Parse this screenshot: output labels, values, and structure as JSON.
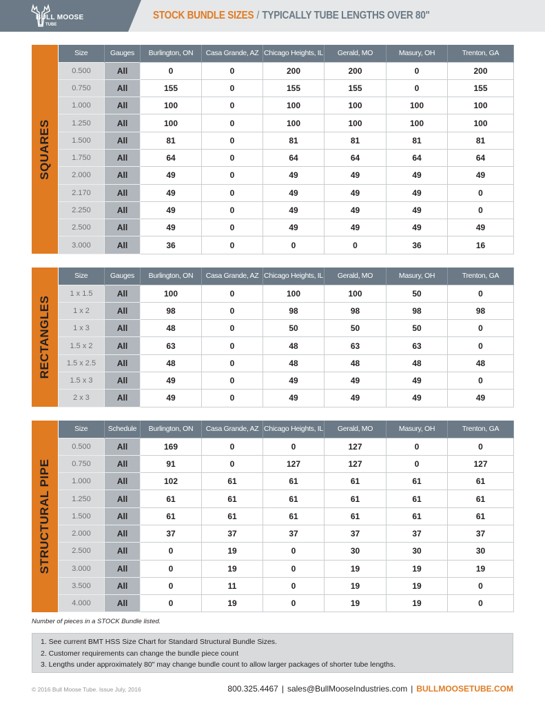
{
  "header": {
    "logo_name": "BULL MOOSE",
    "logo_sub": "TUBE",
    "title_main": "STOCK BUNDLE SIZES",
    "title_sep": "/",
    "title_sub": "TYPICALLY TUBE LENGTHS OVER 80\""
  },
  "accent": "#e07b22",
  "sections": [
    {
      "label": "SQUARES",
      "columns": [
        "Size",
        "Gauges",
        "Burlington, ON",
        "Casa Grande, AZ",
        "Chicago Heights, IL",
        "Gerald, MO",
        "Masury, OH",
        "Trenton, GA"
      ],
      "rows": [
        [
          "0.500",
          "All",
          "0",
          "0",
          "200",
          "200",
          "0",
          "200"
        ],
        [
          "0.750",
          "All",
          "155",
          "0",
          "155",
          "155",
          "0",
          "155"
        ],
        [
          "1.000",
          "All",
          "100",
          "0",
          "100",
          "100",
          "100",
          "100"
        ],
        [
          "1.250",
          "All",
          "100",
          "0",
          "100",
          "100",
          "100",
          "100"
        ],
        [
          "1.500",
          "All",
          "81",
          "0",
          "81",
          "81",
          "81",
          "81"
        ],
        [
          "1.750",
          "All",
          "64",
          "0",
          "64",
          "64",
          "64",
          "64"
        ],
        [
          "2.000",
          "All",
          "49",
          "0",
          "49",
          "49",
          "49",
          "49"
        ],
        [
          "2.170",
          "All",
          "49",
          "0",
          "49",
          "49",
          "49",
          "0"
        ],
        [
          "2.250",
          "All",
          "49",
          "0",
          "49",
          "49",
          "49",
          "0"
        ],
        [
          "2.500",
          "All",
          "49",
          "0",
          "49",
          "49",
          "49",
          "49"
        ],
        [
          "3.000",
          "All",
          "36",
          "0",
          "0",
          "0",
          "36",
          "16"
        ]
      ]
    },
    {
      "label": "RECTANGLES",
      "columns": [
        "Size",
        "Gauges",
        "Burlington, ON",
        "Casa Grande, AZ",
        "Chicago Heights, IL",
        "Gerald, MO",
        "Masury, OH",
        "Trenton, GA"
      ],
      "rows": [
        [
          "1 x 1.5",
          "All",
          "100",
          "0",
          "100",
          "100",
          "50",
          "0"
        ],
        [
          "1 x 2",
          "All",
          "98",
          "0",
          "98",
          "98",
          "98",
          "98"
        ],
        [
          "1 x 3",
          "All",
          "48",
          "0",
          "50",
          "50",
          "50",
          "0"
        ],
        [
          "1.5 x 2",
          "All",
          "63",
          "0",
          "48",
          "63",
          "63",
          "0"
        ],
        [
          "1.5 x 2.5",
          "All",
          "48",
          "0",
          "48",
          "48",
          "48",
          "48"
        ],
        [
          "1.5 x 3",
          "All",
          "49",
          "0",
          "49",
          "49",
          "49",
          "0"
        ],
        [
          "2 x 3",
          "All",
          "49",
          "0",
          "49",
          "49",
          "49",
          "49"
        ]
      ]
    },
    {
      "label": "STRUCTURAL PIPE",
      "columns": [
        "Size",
        "Schedule",
        "Burlington, ON",
        "Casa Grande, AZ",
        "Chicago Heights, IL",
        "Gerald, MO",
        "Masury, OH",
        "Trenton, GA"
      ],
      "rows": [
        [
          "0.500",
          "All",
          "169",
          "0",
          "0",
          "127",
          "0",
          "0"
        ],
        [
          "0.750",
          "All",
          "91",
          "0",
          "127",
          "127",
          "0",
          "127"
        ],
        [
          "1.000",
          "All",
          "102",
          "61",
          "61",
          "61",
          "61",
          "61"
        ],
        [
          "1.250",
          "All",
          "61",
          "61",
          "61",
          "61",
          "61",
          "61"
        ],
        [
          "1.500",
          "All",
          "61",
          "61",
          "61",
          "61",
          "61",
          "61"
        ],
        [
          "2.000",
          "All",
          "37",
          "37",
          "37",
          "37",
          "37",
          "37"
        ],
        [
          "2.500",
          "All",
          "0",
          "19",
          "0",
          "30",
          "30",
          "30"
        ],
        [
          "3.000",
          "All",
          "0",
          "19",
          "0",
          "19",
          "19",
          "19"
        ],
        [
          "3.500",
          "All",
          "0",
          "11",
          "0",
          "19",
          "19",
          "0"
        ],
        [
          "4.000",
          "All",
          "0",
          "19",
          "0",
          "19",
          "19",
          "0"
        ]
      ]
    }
  ],
  "note": "Number of pieces in a STOCK Bundle listed.",
  "notes": [
    "1. See current BMT HSS Size Chart for Standard Structural Bundle Sizes.",
    "2. Customer requirements can change the bundle piece count",
    "3. Lengths under approximately 80\" may change bundle count to allow larger packages of shorter tube lengths."
  ],
  "footer": {
    "copyright": "© 2016 Bull Moose Tube. Issue July, 2016",
    "phone": "800.325.4467",
    "email": "sales@BullMooseIndustries.com",
    "website": "BULLMOOSETUBE.COM",
    "sep": "|"
  }
}
